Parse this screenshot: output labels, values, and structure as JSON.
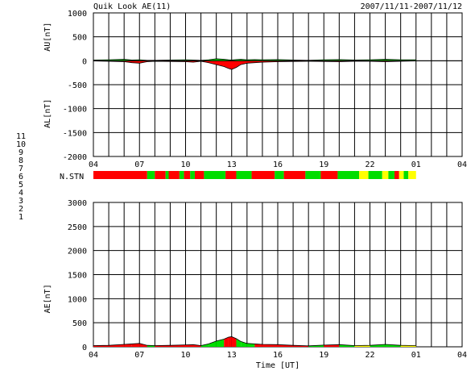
{
  "header": {
    "title": "Quik Look AE(11)",
    "date_range": "2007/11/11-2007/11/12"
  },
  "station_legend": {
    "label": "N.STN",
    "levels": [
      {
        "label": "11",
        "color": "#00e0e0"
      },
      {
        "label": "10",
        "color": "#ff00ff"
      },
      {
        "label": "9",
        "color": "#3030c0"
      },
      {
        "label": "8",
        "color": "#f0f080"
      },
      {
        "label": "7",
        "color": "#00c000"
      },
      {
        "label": "6",
        "color": "#ff0000"
      },
      {
        "label": "5",
        "color": "#b0b0b0"
      },
      {
        "label": "4",
        "color": "#c0c0c0"
      },
      {
        "label": "3",
        "color": "#00c0c0"
      },
      {
        "label": "2",
        "color": "#c000c0"
      },
      {
        "label": "1",
        "color": "#4040d0"
      }
    ],
    "strip": [
      {
        "start": 4.0,
        "end": 7.5,
        "color": "#ff0000"
      },
      {
        "start": 7.5,
        "end": 8.0,
        "color": "#00dd00"
      },
      {
        "start": 8.0,
        "end": 8.7,
        "color": "#ff0000"
      },
      {
        "start": 8.7,
        "end": 8.9,
        "color": "#00dd00"
      },
      {
        "start": 8.9,
        "end": 9.6,
        "color": "#ff0000"
      },
      {
        "start": 9.6,
        "end": 9.9,
        "color": "#00dd00"
      },
      {
        "start": 9.9,
        "end": 10.3,
        "color": "#ff0000"
      },
      {
        "start": 10.3,
        "end": 10.6,
        "color": "#00dd00"
      },
      {
        "start": 10.6,
        "end": 11.2,
        "color": "#ff0000"
      },
      {
        "start": 11.2,
        "end": 12.6,
        "color": "#00dd00"
      },
      {
        "start": 12.6,
        "end": 13.3,
        "color": "#ff0000"
      },
      {
        "start": 13.3,
        "end": 14.3,
        "color": "#00dd00"
      },
      {
        "start": 14.3,
        "end": 15.8,
        "color": "#ff0000"
      },
      {
        "start": 15.8,
        "end": 16.4,
        "color": "#00dd00"
      },
      {
        "start": 16.4,
        "end": 17.8,
        "color": "#ff0000"
      },
      {
        "start": 17.8,
        "end": 18.8,
        "color": "#00dd00"
      },
      {
        "start": 18.8,
        "end": 19.9,
        "color": "#ff0000"
      },
      {
        "start": 19.9,
        "end": 21.3,
        "color": "#00dd00"
      },
      {
        "start": 21.3,
        "end": 21.9,
        "color": "#ffff00"
      },
      {
        "start": 21.9,
        "end": 22.8,
        "color": "#00dd00"
      },
      {
        "start": 22.8,
        "end": 23.2,
        "color": "#ffff00"
      },
      {
        "start": 23.2,
        "end": 23.6,
        "color": "#00dd00"
      },
      {
        "start": 23.6,
        "end": 23.9,
        "color": "#ff0000"
      },
      {
        "start": 23.9,
        "end": 24.2,
        "color": "#ffff00"
      },
      {
        "start": 24.2,
        "end": 24.5,
        "color": "#00dd00"
      },
      {
        "start": 24.5,
        "end": 25.0,
        "color": "#ffff00"
      }
    ]
  },
  "colors": {
    "au_fill": "#00dd00",
    "al_fill": "#ff0000",
    "ae_yellow": "#ffff00",
    "grid": "#000000"
  },
  "chart_data": [
    {
      "type": "area",
      "ylabel_top": "AU[nT]",
      "ylabel_bottom": "AL[nT]",
      "ylim": [
        -2000,
        1000
      ],
      "yticks": [
        1000,
        500,
        0,
        -500,
        -1000,
        -1500,
        -2000
      ],
      "xlim": [
        4,
        28
      ],
      "xtick_labels": [
        "04",
        "07",
        "10",
        "13",
        "16",
        "19",
        "22",
        "01",
        "04"
      ],
      "grid": true,
      "x": [
        4.0,
        5.0,
        6.0,
        6.5,
        7.0,
        7.5,
        8.0,
        9.0,
        10.0,
        10.5,
        11.0,
        11.5,
        12.0,
        12.5,
        12.8,
        13.0,
        13.3,
        13.6,
        14.0,
        14.5,
        15.0,
        16.0,
        17.0,
        18.0,
        19.0,
        20.0,
        21.0,
        22.0,
        23.0,
        24.0,
        25.0
      ],
      "series": [
        {
          "name": "AU",
          "values": [
            15,
            20,
            30,
            15,
            20,
            10,
            10,
            15,
            20,
            15,
            10,
            20,
            40,
            30,
            20,
            15,
            25,
            30,
            20,
            25,
            20,
            25,
            15,
            10,
            20,
            25,
            15,
            20,
            30,
            20,
            20
          ]
        },
        {
          "name": "AL",
          "values": [
            -5,
            -10,
            -20,
            -40,
            -50,
            -20,
            -10,
            -15,
            -20,
            -30,
            -10,
            -40,
            -80,
            -120,
            -160,
            -180,
            -140,
            -80,
            -50,
            -40,
            -30,
            -20,
            -15,
            -10,
            -15,
            -20,
            -10,
            -10,
            -20,
            -10,
            -5
          ]
        }
      ]
    },
    {
      "type": "area",
      "ylabel": "AE[nT]",
      "xlabel": "Time [UT]",
      "ylim": [
        0,
        3000
      ],
      "yticks": [
        3000,
        2500,
        2000,
        1500,
        1000,
        500,
        0
      ],
      "xlim": [
        4,
        28
      ],
      "xtick_labels": [
        "04",
        "07",
        "10",
        "13",
        "16",
        "19",
        "22",
        "01",
        "04"
      ],
      "grid": true,
      "x": [
        4.0,
        5.0,
        6.0,
        6.5,
        7.0,
        7.5,
        8.0,
        9.0,
        10.0,
        10.5,
        11.0,
        11.5,
        12.0,
        12.5,
        12.8,
        13.0,
        13.3,
        13.6,
        14.0,
        14.5,
        15.0,
        16.0,
        17.0,
        18.0,
        19.0,
        20.0,
        21.0,
        22.0,
        23.0,
        24.0,
        25.0
      ],
      "series": [
        {
          "name": "AE",
          "values": [
            25,
            30,
            50,
            60,
            70,
            30,
            25,
            30,
            40,
            45,
            25,
            60,
            120,
            160,
            200,
            210,
            170,
            110,
            70,
            60,
            50,
            45,
            30,
            20,
            35,
            45,
            25,
            30,
            50,
            30,
            25
          ]
        }
      ]
    }
  ]
}
